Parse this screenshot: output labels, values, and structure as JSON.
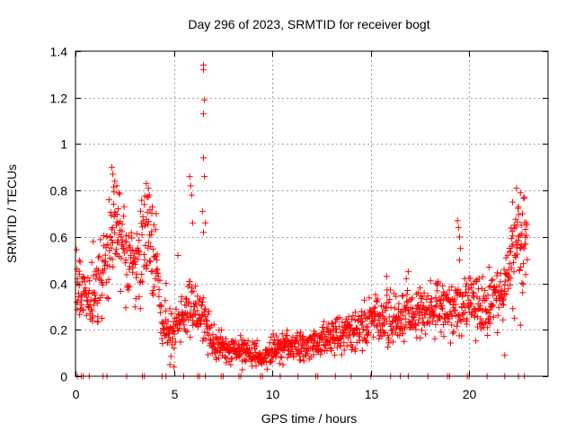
{
  "chart_data": {
    "type": "scatter",
    "title": "Day 296 of 2023, SRMTID for receiver bogt",
    "xlabel": "GPS time / hours",
    "ylabel": "SRMTID / TECUs",
    "xlim": [
      0,
      24
    ],
    "ylim": [
      0,
      1.4
    ],
    "grid": true,
    "marker": "+",
    "color": "#ff0000",
    "xticks": [
      {
        "value": 0,
        "label": "0"
      },
      {
        "value": 5,
        "label": "5"
      },
      {
        "value": 10,
        "label": "10"
      },
      {
        "value": 15,
        "label": "15"
      },
      {
        "value": 20,
        "label": "20"
      }
    ],
    "yticks": [
      {
        "value": 0,
        "label": "0"
      },
      {
        "value": 0.2,
        "label": "0.2"
      },
      {
        "value": 0.4,
        "label": "0.4"
      },
      {
        "value": 0.6,
        "label": "0.6"
      },
      {
        "value": 0.8,
        "label": "0.8"
      },
      {
        "value": 1.0,
        "label": "1"
      },
      {
        "value": 1.2,
        "label": "1.2"
      },
      {
        "value": 1.4,
        "label": "1.4"
      }
    ],
    "profile": [
      [
        0.0,
        0.4
      ],
      [
        0.5,
        0.35
      ],
      [
        1.0,
        0.33
      ],
      [
        1.5,
        0.48
      ],
      [
        2.0,
        0.62
      ],
      [
        2.5,
        0.58
      ],
      [
        3.0,
        0.45
      ],
      [
        3.5,
        0.62
      ],
      [
        4.0,
        0.55
      ],
      [
        4.4,
        0.22
      ],
      [
        5.0,
        0.2
      ],
      [
        5.5,
        0.28
      ],
      [
        6.0,
        0.3
      ],
      [
        6.6,
        0.24
      ],
      [
        7.0,
        0.14
      ],
      [
        8.0,
        0.11
      ],
      [
        9.0,
        0.1
      ],
      [
        9.5,
        0.08
      ],
      [
        10.0,
        0.11
      ],
      [
        11.0,
        0.14
      ],
      [
        12.0,
        0.13
      ],
      [
        13.0,
        0.18
      ],
      [
        14.0,
        0.2
      ],
      [
        15.0,
        0.24
      ],
      [
        16.0,
        0.25
      ],
      [
        17.0,
        0.26
      ],
      [
        18.0,
        0.28
      ],
      [
        19.0,
        0.3
      ],
      [
        20.0,
        0.31
      ],
      [
        21.0,
        0.3
      ],
      [
        21.5,
        0.33
      ],
      [
        22.0,
        0.48
      ],
      [
        22.5,
        0.58
      ],
      [
        23.0,
        0.6
      ]
    ],
    "outliers": [
      {
        "x": 6.5,
        "y": 1.34
      },
      {
        "x": 6.5,
        "y": 1.32
      },
      {
        "x": 6.55,
        "y": 1.19
      },
      {
        "x": 6.5,
        "y": 1.13
      },
      {
        "x": 6.5,
        "y": 0.94
      },
      {
        "x": 6.55,
        "y": 0.86
      },
      {
        "x": 6.45,
        "y": 0.71
      },
      {
        "x": 6.6,
        "y": 0.66
      },
      {
        "x": 6.5,
        "y": 0.62
      },
      {
        "x": 1.85,
        "y": 0.9
      },
      {
        "x": 1.9,
        "y": 0.87
      },
      {
        "x": 2.0,
        "y": 0.84
      },
      {
        "x": 2.1,
        "y": 0.82
      },
      {
        "x": 1.7,
        "y": 0.76
      },
      {
        "x": 2.2,
        "y": 0.79
      },
      {
        "x": 3.6,
        "y": 0.83
      },
      {
        "x": 3.7,
        "y": 0.81
      },
      {
        "x": 3.75,
        "y": 0.78
      },
      {
        "x": 3.5,
        "y": 0.74
      },
      {
        "x": 3.9,
        "y": 0.73
      },
      {
        "x": 4.1,
        "y": 0.7
      },
      {
        "x": 5.8,
        "y": 0.86
      },
      {
        "x": 5.85,
        "y": 0.82
      },
      {
        "x": 5.9,
        "y": 0.78
      },
      {
        "x": 5.95,
        "y": 0.66
      },
      {
        "x": 5.2,
        "y": 0.52
      },
      {
        "x": 4.6,
        "y": 0.4
      },
      {
        "x": 19.4,
        "y": 0.67
      },
      {
        "x": 19.45,
        "y": 0.64
      },
      {
        "x": 19.5,
        "y": 0.6
      },
      {
        "x": 19.55,
        "y": 0.55
      },
      {
        "x": 19.5,
        "y": 0.5
      },
      {
        "x": 22.4,
        "y": 0.81
      },
      {
        "x": 22.6,
        "y": 0.79
      },
      {
        "x": 22.8,
        "y": 0.77
      },
      {
        "x": 22.2,
        "y": 0.75
      },
      {
        "x": 22.5,
        "y": 0.73
      },
      {
        "x": 22.7,
        "y": 0.7
      },
      {
        "x": 16.8,
        "y": 0.42
      },
      {
        "x": 16.9,
        "y": 0.45
      },
      {
        "x": 17.5,
        "y": 0.38
      },
      {
        "x": 18.3,
        "y": 0.4
      },
      {
        "x": 15.8,
        "y": 0.43
      },
      {
        "x": 21.0,
        "y": 0.47
      },
      {
        "x": 0.9,
        "y": 0.58
      },
      {
        "x": 0.2,
        "y": 0.44
      },
      {
        "x": 0.1,
        "y": 0.42
      },
      {
        "x": 22.3,
        "y": 0.25
      },
      {
        "x": 22.6,
        "y": 0.22
      },
      {
        "x": 21.8,
        "y": 0.09
      },
      {
        "x": 5.0,
        "y": 0.04
      },
      {
        "x": 4.8,
        "y": 0.05
      }
    ],
    "zero_points_x": [
      0.1,
      0.3,
      0.4,
      0.7,
      1.4,
      1.6,
      2.6,
      3.4,
      3.5,
      4.4,
      4.6,
      5.5,
      6.2,
      6.3,
      6.6,
      7.4,
      7.5,
      8.3,
      8.4,
      9.4,
      9.5,
      10.4,
      11.3,
      12.2,
      12.3,
      13.2,
      14.0,
      15.0,
      16.0,
      16.5,
      16.9,
      17.9,
      18.9,
      19.0,
      19.9,
      20.0,
      20.9,
      21.8,
      22.5,
      22.8
    ],
    "density": {
      "x_start": 0.05,
      "x_end": 22.95,
      "x_step": 0.032,
      "points_per_step": 2,
      "seed": 296
    }
  }
}
